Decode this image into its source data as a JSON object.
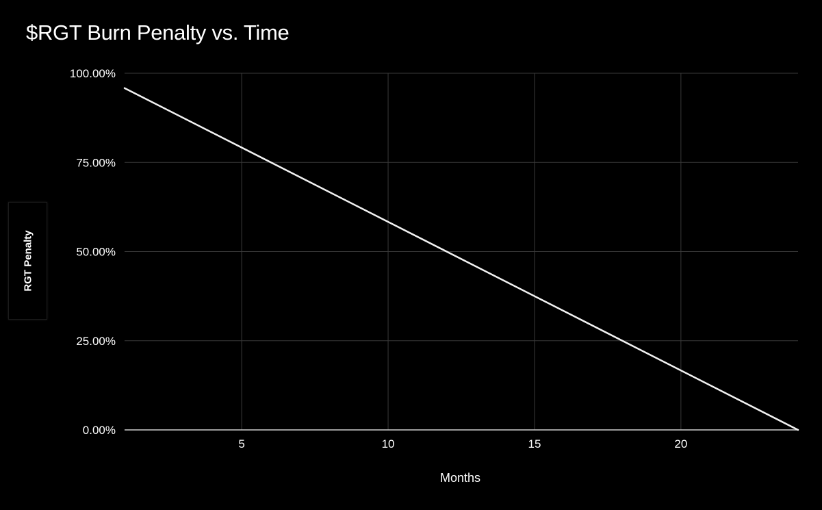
{
  "chart_data": {
    "type": "line",
    "title": "$RGT Burn Penalty vs. Time",
    "xlabel": "Months",
    "ylabel": "RGT Penalty",
    "xlim": [
      1,
      24
    ],
    "ylim": [
      0,
      1
    ],
    "x_ticks": [
      5,
      10,
      15,
      20
    ],
    "y_ticks": [
      {
        "value": 0,
        "label": "0.00%"
      },
      {
        "value": 0.25,
        "label": "25.00%"
      },
      {
        "value": 0.5,
        "label": "50.00%"
      },
      {
        "value": 0.75,
        "label": "75.00%"
      },
      {
        "value": 1,
        "label": "100.00%"
      }
    ],
    "grid": true,
    "series": [
      {
        "x": [
          1,
          24
        ],
        "y": [
          0.9583,
          0
        ]
      }
    ],
    "colors": {
      "background": "#000000",
      "line": "#f2f2f2",
      "grid": "#3a3a3a",
      "axis": "#cfcfcf"
    }
  }
}
